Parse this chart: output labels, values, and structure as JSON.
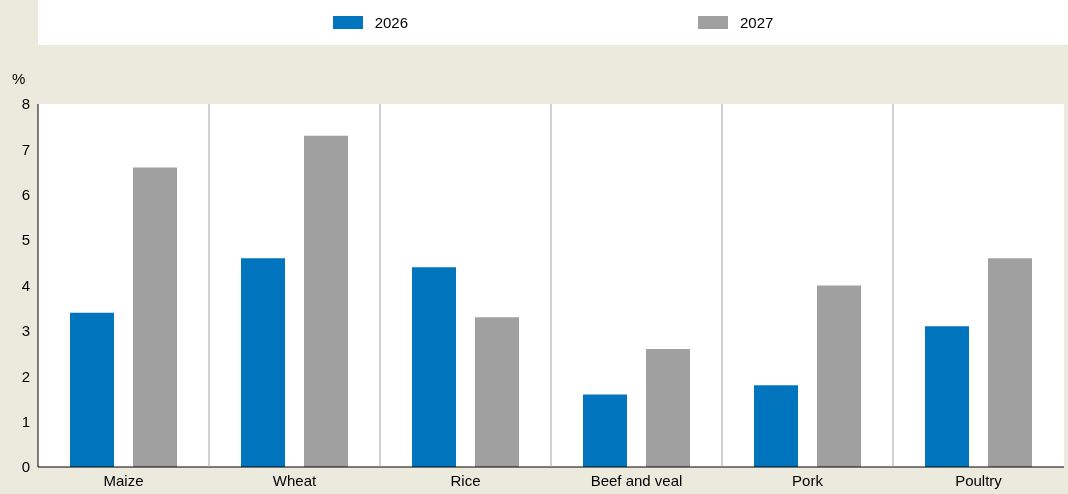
{
  "chart_data": {
    "type": "bar",
    "ylabel": "%",
    "categories": [
      "Maize",
      "Wheat",
      "Rice",
      "Beef and veal",
      "Pork",
      "Poultry"
    ],
    "series": [
      {
        "name": "2026",
        "color": "#0075be",
        "values": [
          3.4,
          4.6,
          4.4,
          1.6,
          1.8,
          3.1
        ]
      },
      {
        "name": "2027",
        "color": "#a0a0a0",
        "values": [
          6.6,
          7.3,
          3.3,
          2.6,
          4.0,
          4.6
        ]
      }
    ],
    "ylim": [
      0,
      8
    ],
    "yticks": [
      0,
      1,
      2,
      3,
      4,
      5,
      6,
      7,
      8
    ],
    "grid": false,
    "legend": "top"
  }
}
